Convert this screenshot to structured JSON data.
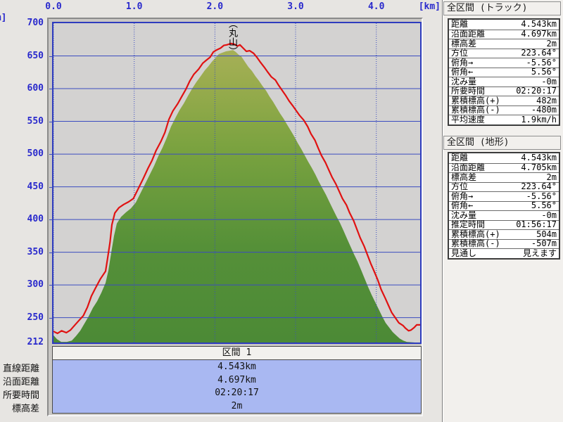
{
  "colors": {
    "page_bg": "#e7e5e2",
    "panel_bg": "#f2f0ed",
    "widget_bg": "#c9c7c4",
    "plot_bg": "#d3d2d1",
    "plot_border": "#2e3cbe",
    "grid": "#3b4cc0",
    "axis_text": "#2929cc",
    "track_red": "#e01212",
    "section_header_bg": "#f2f1ee",
    "section_body_bg": "#a9b8f2",
    "terrain_gradient": [
      [
        0,
        "#b0b35f"
      ],
      [
        0.18,
        "#9aac4e"
      ],
      [
        0.4,
        "#79a23f"
      ],
      [
        0.7,
        "#559038"
      ],
      [
        1,
        "#4c8a36"
      ]
    ]
  },
  "chart_data": {
    "type": "area+line",
    "xlabel": "[km]",
    "ylabel": "[m]",
    "x_range": [
      0,
      4.543
    ],
    "y_range": [
      212,
      700
    ],
    "x_ticks": [
      {
        "v": 0,
        "label": "0.0"
      },
      {
        "v": 1,
        "label": "1.0"
      },
      {
        "v": 2,
        "label": "2.0"
      },
      {
        "v": 3,
        "label": "3.0"
      },
      {
        "v": 4,
        "label": "4.0"
      }
    ],
    "y_ticks": [
      {
        "v": 700,
        "label": "700"
      },
      {
        "v": 650,
        "label": "650"
      },
      {
        "v": 600,
        "label": "600"
      },
      {
        "v": 550,
        "label": "550"
      },
      {
        "v": 500,
        "label": "500"
      },
      {
        "v": 450,
        "label": "450"
      },
      {
        "v": 400,
        "label": "400"
      },
      {
        "v": 350,
        "label": "350"
      },
      {
        "v": 300,
        "label": "300"
      },
      {
        "v": 250,
        "label": "250"
      },
      {
        "v": 212,
        "label": "212"
      }
    ],
    "y_gridlines": [
      650,
      600,
      550,
      500,
      450,
      400,
      350,
      300,
      250
    ],
    "x_gridlines": [
      0,
      1,
      2,
      3,
      4
    ],
    "annotation": {
      "text": "（丸山）",
      "km": 2.215
    },
    "series": [
      {
        "name": "terrain_profile",
        "style": "area",
        "points": [
          [
            0,
            223
          ],
          [
            0.044,
            217
          ],
          [
            0.096,
            213
          ],
          [
            0.166,
            213
          ],
          [
            0.227,
            215
          ],
          [
            0.279,
            222
          ],
          [
            0.331,
            230
          ],
          [
            0.384,
            241
          ],
          [
            0.436,
            252
          ],
          [
            0.488,
            265
          ],
          [
            0.541,
            275
          ],
          [
            0.593,
            288
          ],
          [
            0.645,
            303
          ],
          [
            0.68,
            322
          ],
          [
            0.715,
            349
          ],
          [
            0.75,
            375
          ],
          [
            0.785,
            394
          ],
          [
            0.837,
            404
          ],
          [
            0.898,
            411
          ],
          [
            0.959,
            417
          ],
          [
            1.02,
            426
          ],
          [
            1.073,
            439
          ],
          [
            1.134,
            454
          ],
          [
            1.195,
            469
          ],
          [
            1.247,
            482
          ],
          [
            1.299,
            497
          ],
          [
            1.352,
            510
          ],
          [
            1.404,
            525
          ],
          [
            1.456,
            542
          ],
          [
            1.509,
            555
          ],
          [
            1.561,
            567
          ],
          [
            1.613,
            577
          ],
          [
            1.666,
            589
          ],
          [
            1.718,
            600
          ],
          [
            1.77,
            610
          ],
          [
            1.823,
            619
          ],
          [
            1.875,
            628
          ],
          [
            1.918,
            634
          ],
          [
            1.962,
            641
          ],
          [
            2.006,
            647
          ],
          [
            2.049,
            653
          ],
          [
            2.093,
            655
          ],
          [
            2.136,
            657
          ],
          [
            2.18,
            658
          ],
          [
            2.224,
            659
          ],
          [
            2.258,
            656
          ],
          [
            2.293,
            652
          ],
          [
            2.328,
            649
          ],
          [
            2.372,
            641
          ],
          [
            2.415,
            633
          ],
          [
            2.459,
            627
          ],
          [
            2.503,
            619
          ],
          [
            2.546,
            612
          ],
          [
            2.59,
            604
          ],
          [
            2.633,
            597
          ],
          [
            2.677,
            588
          ],
          [
            2.721,
            580
          ],
          [
            2.764,
            571
          ],
          [
            2.808,
            562
          ],
          [
            2.851,
            554
          ],
          [
            2.895,
            545
          ],
          [
            2.939,
            536
          ],
          [
            2.982,
            527
          ],
          [
            3.026,
            517
          ],
          [
            3.069,
            508
          ],
          [
            3.113,
            498
          ],
          [
            3.157,
            488
          ],
          [
            3.2,
            479
          ],
          [
            3.244,
            469
          ],
          [
            3.287,
            458
          ],
          [
            3.331,
            448
          ],
          [
            3.375,
            438
          ],
          [
            3.418,
            427
          ],
          [
            3.462,
            416
          ],
          [
            3.505,
            405
          ],
          [
            3.549,
            395
          ],
          [
            3.593,
            383
          ],
          [
            3.636,
            371
          ],
          [
            3.68,
            359
          ],
          [
            3.723,
            347
          ],
          [
            3.767,
            336
          ],
          [
            3.811,
            323
          ],
          [
            3.854,
            310
          ],
          [
            3.898,
            297
          ],
          [
            3.941,
            285
          ],
          [
            4.029,
            263
          ],
          [
            4.072,
            252
          ],
          [
            4.116,
            242
          ],
          [
            4.159,
            235
          ],
          [
            4.203,
            228
          ],
          [
            4.246,
            223
          ],
          [
            4.29,
            218
          ],
          [
            4.334,
            215
          ],
          [
            4.377,
            213
          ],
          [
            4.48,
            212
          ]
        ]
      },
      {
        "name": "gps_track",
        "style": "line",
        "color": "#e01212",
        "points": [
          [
            0,
            229
          ],
          [
            0.05,
            226
          ],
          [
            0.1,
            230
          ],
          [
            0.16,
            227
          ],
          [
            0.21,
            231
          ],
          [
            0.26,
            238
          ],
          [
            0.31,
            245
          ],
          [
            0.37,
            253
          ],
          [
            0.42,
            266
          ],
          [
            0.47,
            283
          ],
          [
            0.52,
            295
          ],
          [
            0.58,
            309
          ],
          [
            0.645,
            321
          ],
          [
            0.67,
            340
          ],
          [
            0.7,
            365
          ],
          [
            0.724,
            392
          ],
          [
            0.76,
            410
          ],
          [
            0.81,
            418
          ],
          [
            0.87,
            423
          ],
          [
            0.93,
            427
          ],
          [
            0.99,
            432
          ],
          [
            1.05,
            447
          ],
          [
            1.11,
            462
          ],
          [
            1.17,
            478
          ],
          [
            1.22,
            490
          ],
          [
            1.27,
            505
          ],
          [
            1.33,
            519
          ],
          [
            1.38,
            533
          ],
          [
            1.43,
            553
          ],
          [
            1.48,
            566
          ],
          [
            1.54,
            577
          ],
          [
            1.59,
            588
          ],
          [
            1.64,
            599
          ],
          [
            1.69,
            612
          ],
          [
            1.74,
            622
          ],
          [
            1.8,
            630
          ],
          [
            1.85,
            639
          ],
          [
            1.89,
            643
          ],
          [
            1.94,
            648
          ],
          [
            1.98,
            656
          ],
          [
            2.02,
            659
          ],
          [
            2.07,
            662
          ],
          [
            2.11,
            666
          ],
          [
            2.15,
            667
          ],
          [
            2.2,
            669
          ],
          [
            2.24,
            668
          ],
          [
            2.28,
            665
          ],
          [
            2.31,
            667
          ],
          [
            2.35,
            662
          ],
          [
            2.39,
            657
          ],
          [
            2.43,
            658
          ],
          [
            2.48,
            654
          ],
          [
            2.52,
            648
          ],
          [
            2.56,
            641
          ],
          [
            2.61,
            633
          ],
          [
            2.65,
            626
          ],
          [
            2.7,
            618
          ],
          [
            2.75,
            613
          ],
          [
            2.79,
            605
          ],
          [
            2.83,
            598
          ],
          [
            2.88,
            589
          ],
          [
            2.92,
            581
          ],
          [
            2.97,
            573
          ],
          [
            3.01,
            566
          ],
          [
            3.05,
            559
          ],
          [
            3.1,
            552
          ],
          [
            3.15,
            542
          ],
          [
            3.19,
            531
          ],
          [
            3.24,
            521
          ],
          [
            3.28,
            509
          ],
          [
            3.32,
            498
          ],
          [
            3.37,
            487
          ],
          [
            3.41,
            476
          ],
          [
            3.45,
            465
          ],
          [
            3.5,
            454
          ],
          [
            3.54,
            443
          ],
          [
            3.58,
            432
          ],
          [
            3.63,
            422
          ],
          [
            3.67,
            410
          ],
          [
            3.72,
            398
          ],
          [
            3.76,
            385
          ],
          [
            3.8,
            372
          ],
          [
            3.85,
            359
          ],
          [
            3.89,
            346
          ],
          [
            3.93,
            333
          ],
          [
            3.98,
            319
          ],
          [
            4.02,
            307
          ],
          [
            4.06,
            293
          ],
          [
            4.11,
            280
          ],
          [
            4.15,
            269
          ],
          [
            4.19,
            258
          ],
          [
            4.24,
            249
          ],
          [
            4.28,
            242
          ],
          [
            4.33,
            238
          ],
          [
            4.36,
            234
          ],
          [
            4.4,
            230
          ],
          [
            4.43,
            231
          ],
          [
            4.47,
            235
          ],
          [
            4.5,
            239
          ],
          [
            4.543,
            239
          ]
        ]
      }
    ]
  },
  "panels": [
    {
      "title": "全区間 (トラック)",
      "rows": [
        {
          "label": "距離",
          "value": "4.543km"
        },
        {
          "label": "沿面距離",
          "value": "4.697km"
        },
        {
          "label": "標高差",
          "value": "2m"
        },
        {
          "label": "方位",
          "value": "223.64°"
        },
        {
          "label": "俯角→",
          "value": "-5.56°"
        },
        {
          "label": "俯角←",
          "value": "5.56°"
        },
        {
          "label": "沈み量",
          "value": "-0m"
        },
        {
          "label": "所要時間",
          "value": "02:20:17"
        },
        {
          "label": "累積標高(+)",
          "value": "482m"
        },
        {
          "label": "累積標高(-)",
          "value": "-480m"
        },
        {
          "label": "平均速度",
          "value": "1.9km/h"
        }
      ]
    },
    {
      "title": "全区間 (地形)",
      "rows": [
        {
          "label": "距離",
          "value": "4.543km"
        },
        {
          "label": "沿面距離",
          "value": "4.705km"
        },
        {
          "label": "標高差",
          "value": "2m"
        },
        {
          "label": "方位",
          "value": "223.64°"
        },
        {
          "label": "俯角→",
          "value": "-5.56°"
        },
        {
          "label": "俯角←",
          "value": "5.56°"
        },
        {
          "label": "沈み量",
          "value": "-0m"
        },
        {
          "label": "推定時間",
          "value": "01:56:17"
        },
        {
          "label": "累積標高(+)",
          "value": "504m"
        },
        {
          "label": "累積標高(-)",
          "value": "-507m"
        },
        {
          "label": "見通し",
          "value": "見えます"
        }
      ]
    }
  ],
  "section_table": {
    "header": "区間 1",
    "row_labels": [
      "直線距離",
      "沿面距離",
      "所要時間",
      "標高差"
    ],
    "values": [
      "4.543km",
      "4.697km",
      "02:20:17",
      "2m"
    ]
  }
}
